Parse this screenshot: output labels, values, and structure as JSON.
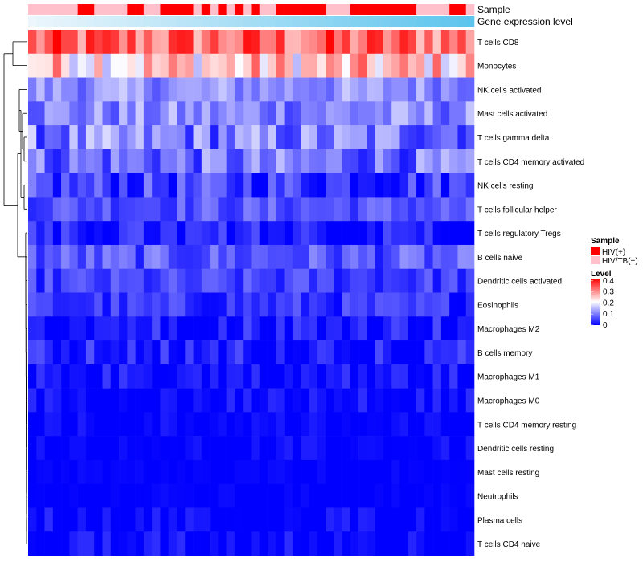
{
  "chart_data": {
    "type": "heatmap",
    "title": "",
    "n_samples": 54,
    "annotations": {
      "sample_label": "Sample",
      "gene_label": "Gene expression level"
    },
    "legend": {
      "sample": {
        "title": "Sample",
        "entries": [
          {
            "label": "HIV(+)",
            "color": "#ff0000"
          },
          {
            "label": "HIV/TB(+)",
            "color": "#ffc0cb"
          }
        ]
      },
      "level": {
        "title": "Level",
        "ticks": [
          "0.4",
          "0.3",
          "0.2",
          "0.1",
          "0"
        ],
        "tick_values": [
          0.4,
          0.3,
          0.2,
          0.1,
          0
        ],
        "range": [
          0,
          0.42
        ],
        "low_color": "#0000ff",
        "mid_color": "#ffffff",
        "high_color": "#ff0000"
      }
    },
    "sample_groups": [
      "HIV/TB(+)",
      "HIV/TB(+)",
      "HIV/TB(+)",
      "HIV/TB(+)",
      "HIV/TB(+)",
      "HIV/TB(+)",
      "HIV(+)",
      "HIV(+)",
      "HIV/TB(+)",
      "HIV/TB(+)",
      "HIV/TB(+)",
      "HIV/TB(+)",
      "HIV(+)",
      "HIV(+)",
      "HIV/TB(+)",
      "HIV/TB(+)",
      "HIV(+)",
      "HIV(+)",
      "HIV(+)",
      "HIV(+)",
      "HIV/TB(+)",
      "HIV(+)",
      "HIV/TB(+)",
      "HIV(+)",
      "HIV/TB(+)",
      "HIV(+)",
      "HIV/TB(+)",
      "HIV(+)",
      "HIV/TB(+)",
      "HIV/TB(+)",
      "HIV(+)",
      "HIV(+)",
      "HIV(+)",
      "HIV(+)",
      "HIV(+)",
      "HIV(+)",
      "HIV/TB(+)",
      "HIV/TB(+)",
      "HIV/TB(+)",
      "HIV(+)",
      "HIV(+)",
      "HIV(+)",
      "HIV(+)",
      "HIV(+)",
      "HIV(+)",
      "HIV(+)",
      "HIV(+)",
      "HIV/TB(+)",
      "HIV/TB(+)",
      "HIV/TB(+)",
      "HIV/TB(+)",
      "HIV(+)",
      "HIV(+)",
      "HIV/TB(+)"
    ],
    "rows": [
      {
        "name": "T cells CD8",
        "mean": 0.33,
        "spread": 0.09
      },
      {
        "name": "Monocytes",
        "mean": 0.25,
        "spread": 0.1
      },
      {
        "name": "NK cells activated",
        "mean": 0.12,
        "spread": 0.05
      },
      {
        "name": "Mast cells activated",
        "mean": 0.11,
        "spread": 0.06
      },
      {
        "name": "T cells gamma delta",
        "mean": 0.1,
        "spread": 0.08
      },
      {
        "name": "T cells CD4 memory activated",
        "mean": 0.09,
        "spread": 0.07
      },
      {
        "name": "NK cells resting",
        "mean": 0.05,
        "spread": 0.06
      },
      {
        "name": "T cells follicular helper",
        "mean": 0.07,
        "spread": 0.04
      },
      {
        "name": "T cells regulatory  Tregs",
        "mean": 0.03,
        "spread": 0.04
      },
      {
        "name": "B cells naive",
        "mean": 0.07,
        "spread": 0.05
      },
      {
        "name": "Dendritic cells activated",
        "mean": 0.05,
        "spread": 0.04
      },
      {
        "name": "Eosinophils",
        "mean": 0.04,
        "spread": 0.04
      },
      {
        "name": "Macrophages M2",
        "mean": 0.03,
        "spread": 0.04
      },
      {
        "name": "B cells memory",
        "mean": 0.03,
        "spread": 0.04
      },
      {
        "name": "Macrophages M1",
        "mean": 0.02,
        "spread": 0.03
      },
      {
        "name": "Macrophages M0",
        "mean": 0.01,
        "spread": 0.03
      },
      {
        "name": "T cells CD4 memory resting",
        "mean": 0.005,
        "spread": 0.02
      },
      {
        "name": "Dendritic cells resting",
        "mean": 0.005,
        "spread": 0.02
      },
      {
        "name": "Mast cells resting",
        "mean": 0.0,
        "spread": 0.01
      },
      {
        "name": "Neutrophils",
        "mean": 0.0,
        "spread": 0.01
      },
      {
        "name": "Plasma cells",
        "mean": 0.01,
        "spread": 0.03
      },
      {
        "name": "T cells CD4 naive",
        "mean": 0.01,
        "spread": 0.03
      }
    ],
    "dendrogram_order": [
      "T cells CD8",
      "Monocytes",
      "NK cells activated",
      "Mast cells activated",
      "T cells gamma delta",
      "T cells CD4 memory activated",
      "NK cells resting",
      "T cells follicular helper",
      "T cells regulatory  Tregs",
      "B cells naive",
      "Dendritic cells activated",
      "Eosinophils",
      "Macrophages M2",
      "B cells memory",
      "Macrophages M1",
      "Macrophages M0",
      "T cells CD4 memory resting",
      "Dendritic cells resting",
      "Mast cells resting",
      "Neutrophils",
      "Plasma cells",
      "T cells CD4 naive"
    ]
  }
}
